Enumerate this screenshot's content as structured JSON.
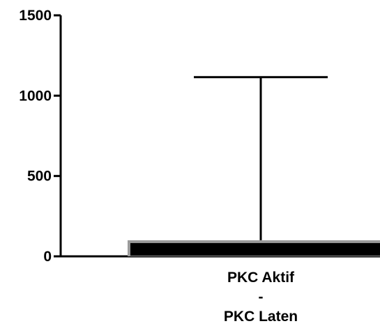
{
  "chart_data": {
    "type": "bar",
    "categories": [
      "PKC Aktif\n-\nPKC Laten"
    ],
    "values": [
      100
    ],
    "error_bars": [
      {
        "upper": 1115,
        "lower": 100
      }
    ],
    "ylim": [
      0,
      1500
    ],
    "yticks": [
      0,
      500,
      1000,
      1500
    ],
    "colors": {
      "bar_fill": "#000000",
      "bar_edge": "#9a9a9a",
      "axis": "#000000"
    },
    "grid": false,
    "legend": "none"
  }
}
